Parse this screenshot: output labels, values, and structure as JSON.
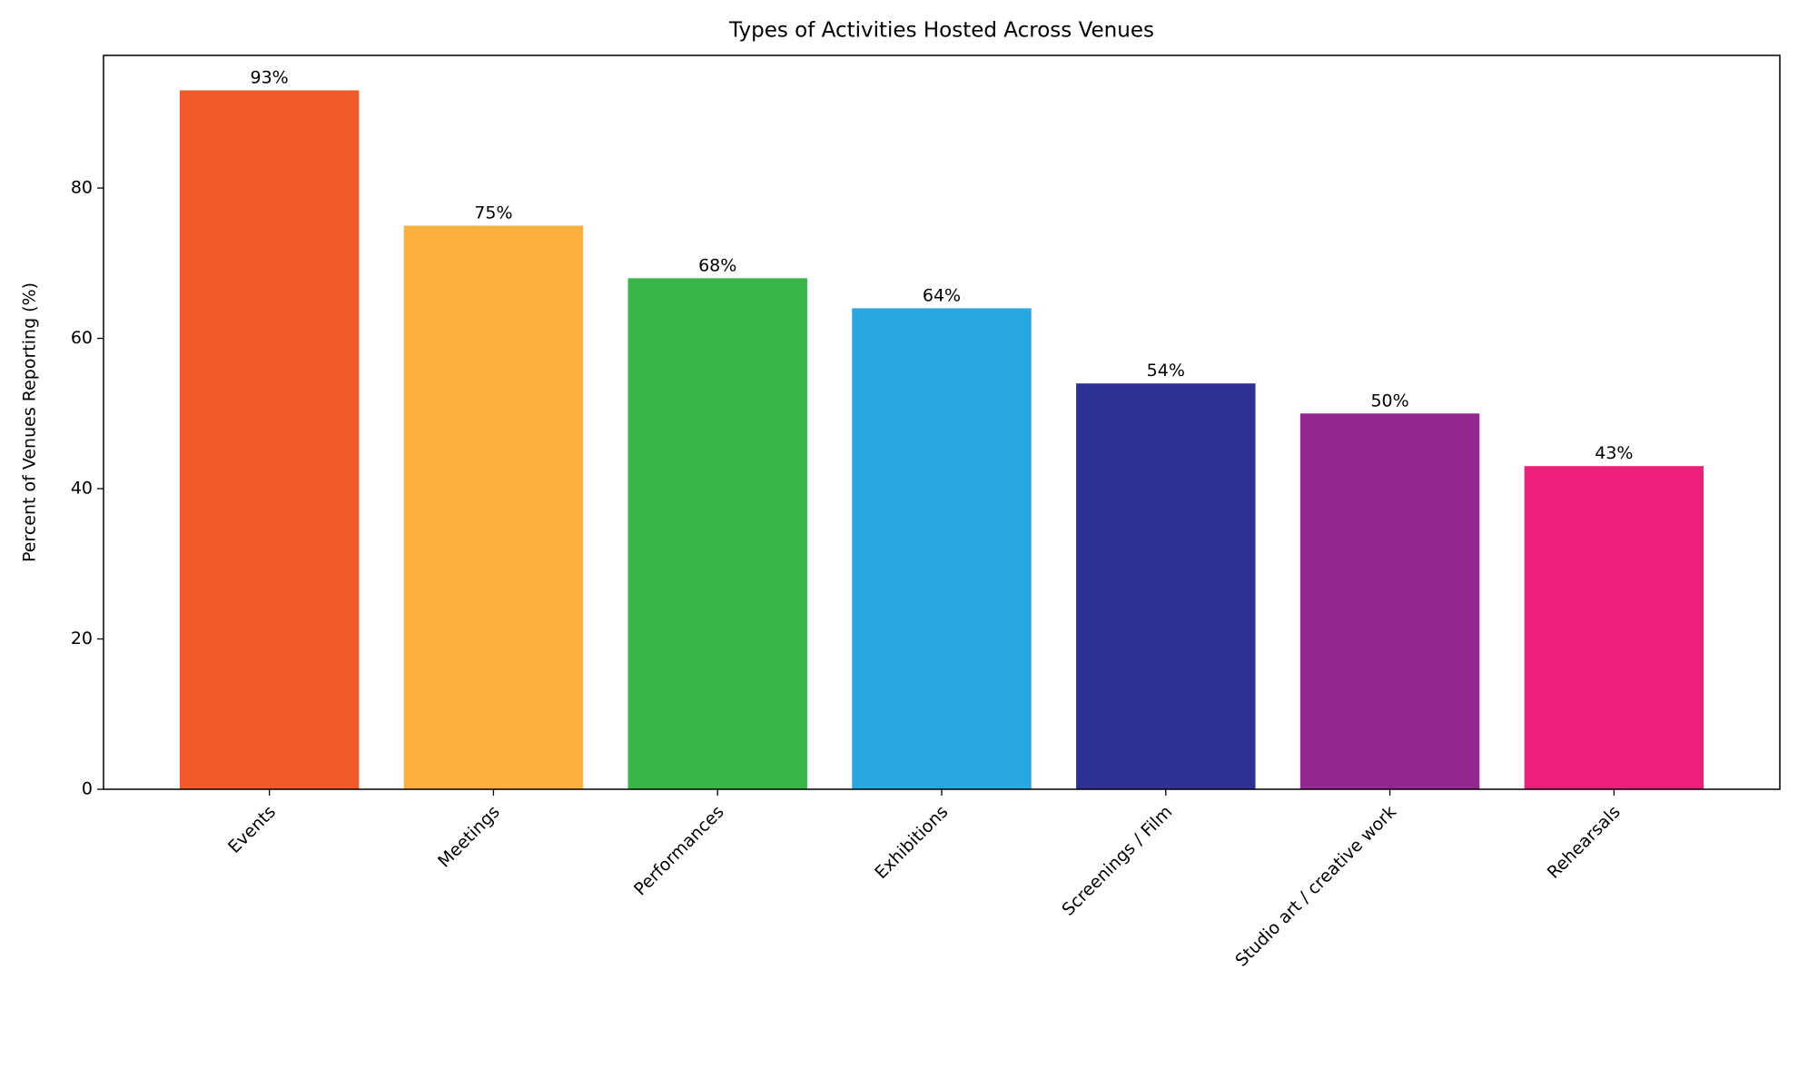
{
  "chart_data": {
    "type": "bar",
    "title": "Types of Activities Hosted Across Venues",
    "y_label": "Percent of Venues Reporting (%)",
    "categories": [
      "Events",
      "Meetings",
      "Performances",
      "Exhibitions",
      "Screenings / Film",
      "Studio art / creative work",
      "Rehearsals"
    ],
    "values": [
      93,
      75,
      68,
      64,
      54,
      50,
      43
    ],
    "value_labels": [
      "93%",
      "75%",
      "68%",
      "64%",
      "54%",
      "50%",
      "43%"
    ],
    "colors": [
      "#F15A29",
      "#FBB040",
      "#39B54A",
      "#29A8E0",
      "#2E3192",
      "#92278F",
      "#EE1F7B"
    ],
    "ylim": [
      0,
      97.65
    ],
    "yticks": [
      0,
      20,
      40,
      60,
      80
    ],
    "grid": false
  }
}
